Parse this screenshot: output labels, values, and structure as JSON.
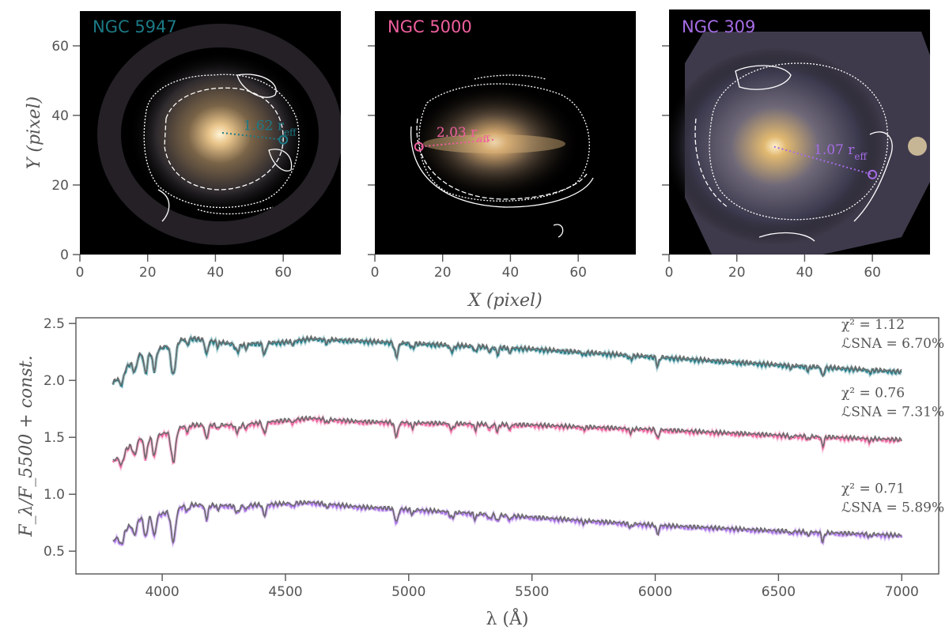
{
  "colors": {
    "teal": "#1c7a86",
    "pink": "#ef5f9e",
    "purple": "#a66ce6",
    "model": "#6b6b6b",
    "contour": "#ffffff",
    "axis": "#555555"
  },
  "chart_data": [
    {
      "type": "image",
      "title": "NGC 5947",
      "title_color": "#1c7a86",
      "xlabel": "",
      "ylabel": "Y (pixel)",
      "xlim": [
        0,
        77
      ],
      "ylim": [
        0,
        70
      ],
      "xticks": [
        0,
        20,
        40,
        60
      ],
      "yticks": [
        0,
        20,
        40,
        60
      ],
      "center": [
        42,
        35
      ],
      "marker": [
        60,
        33
      ],
      "radius_label": "1.62 r",
      "radius_sub": "eff"
    },
    {
      "type": "image",
      "title": "NGC 5000",
      "title_color": "#ef5f9e",
      "xlabel": "X (pixel)",
      "ylabel": "",
      "xlim": [
        0,
        77
      ],
      "ylim": [
        0,
        70
      ],
      "xticks": [
        0,
        20,
        40,
        60
      ],
      "yticks": [
        0,
        20,
        40,
        60
      ],
      "center": [
        35,
        33
      ],
      "marker": [
        13,
        31
      ],
      "radius_label": "2.03 r",
      "radius_sub": "eff"
    },
    {
      "type": "image",
      "title": "NGC 309",
      "title_color": "#a66ce6",
      "xlabel": "",
      "ylabel": "",
      "xlim": [
        0,
        77
      ],
      "ylim": [
        0,
        70
      ],
      "xticks": [
        0,
        20,
        40,
        60
      ],
      "yticks": [
        0,
        20,
        40,
        60
      ],
      "center": [
        31,
        31
      ],
      "marker": [
        60,
        23
      ],
      "radius_label": "1.07 r",
      "radius_sub": "eff"
    },
    {
      "type": "line",
      "title": "",
      "xlabel": "λ (Å)",
      "ylabel": "F_λ/F_5500 + const.",
      "xlim": [
        3650,
        7150
      ],
      "ylim": [
        0.3,
        2.55
      ],
      "xticks": [
        4000,
        4500,
        5000,
        5500,
        6000,
        6500,
        7000
      ],
      "yticks": [
        0.5,
        1.0,
        1.5,
        2.0,
        2.5
      ],
      "ytick_labels": [
        "0.5",
        "1.0",
        "1.5",
        "2.0",
        "2.5"
      ],
      "wavelength_range": [
        3800,
        7000
      ],
      "series": [
        {
          "name": "NGC 5947",
          "color": "#1c7a86",
          "continuum": [
            [
              3800,
              1.97
            ],
            [
              3900,
              2.22
            ],
            [
              4000,
              2.28
            ],
            [
              4100,
              2.37
            ],
            [
              4300,
              2.31
            ],
            [
              4500,
              2.33
            ],
            [
              4600,
              2.36
            ],
            [
              4800,
              2.34
            ],
            [
              5000,
              2.32
            ],
            [
              5500,
              2.27
            ],
            [
              6000,
              2.2
            ],
            [
              6500,
              2.13
            ],
            [
              7000,
              2.07
            ]
          ],
          "chi2_label": "χ² = 1.12",
          "lsna_label": "ℒSNA = 6.70%"
        },
        {
          "name": "NGC 5000",
          "color": "#ef5f9e",
          "continuum": [
            [
              3800,
              1.28
            ],
            [
              3900,
              1.48
            ],
            [
              4000,
              1.52
            ],
            [
              4100,
              1.6
            ],
            [
              4300,
              1.6
            ],
            [
              4500,
              1.64
            ],
            [
              4600,
              1.66
            ],
            [
              4800,
              1.63
            ],
            [
              5000,
              1.62
            ],
            [
              5500,
              1.6
            ],
            [
              6000,
              1.56
            ],
            [
              6500,
              1.51
            ],
            [
              7000,
              1.47
            ]
          ],
          "chi2_label": "χ² = 0.76",
          "lsna_label": "ℒSNA = 7.31%"
        },
        {
          "name": "NGC 309",
          "color": "#a66ce6",
          "continuum": [
            [
              3800,
              0.58
            ],
            [
              3900,
              0.78
            ],
            [
              4000,
              0.82
            ],
            [
              4100,
              0.9
            ],
            [
              4300,
              0.89
            ],
            [
              4500,
              0.91
            ],
            [
              4600,
              0.92
            ],
            [
              4800,
              0.88
            ],
            [
              5000,
              0.86
            ],
            [
              5500,
              0.79
            ],
            [
              6000,
              0.72
            ],
            [
              6500,
              0.67
            ],
            [
              7000,
              0.63
            ]
          ],
          "chi2_label": "χ² = 0.71",
          "lsna_label": "ℒSNA = 5.89%"
        }
      ]
    }
  ]
}
